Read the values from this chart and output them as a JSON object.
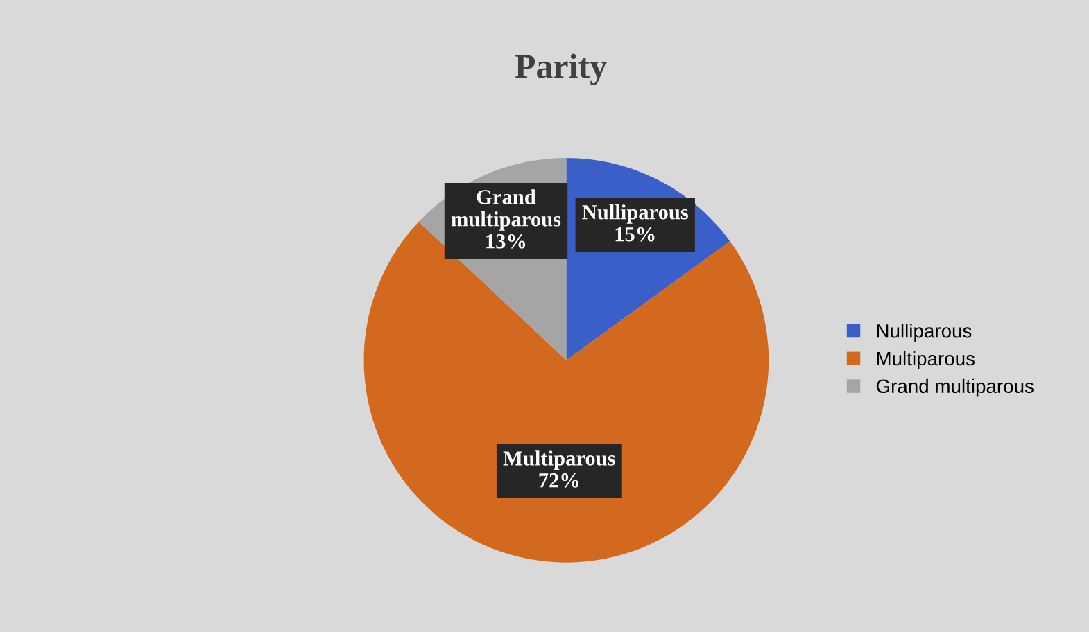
{
  "chart_data": {
    "type": "pie",
    "title": "Parity",
    "categories": [
      "Nulliparous",
      "Multiparous",
      "Grand multiparous"
    ],
    "values": [
      15,
      72,
      13
    ],
    "colors": [
      "#3a5fc8",
      "#d2691e",
      "#a5a5a5"
    ],
    "value_labels": [
      "Nulliparous\n15%",
      "Multiparous\n72%",
      "Grand\nmultiparous\n13%"
    ],
    "legend": "right"
  }
}
